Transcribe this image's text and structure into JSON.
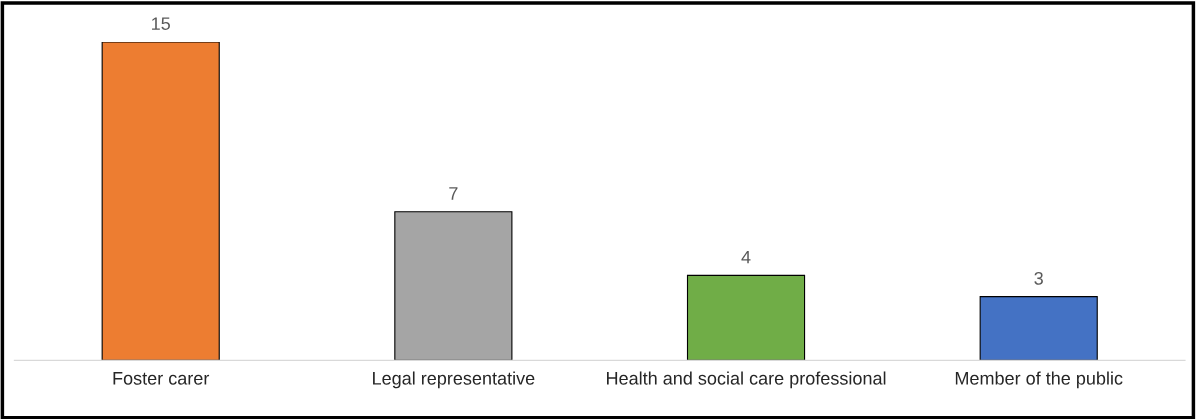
{
  "chart_data": {
    "type": "bar",
    "categories": [
      "Foster carer",
      "Legal representative",
      "Health and social care professional",
      "Member of the public"
    ],
    "values": [
      15,
      7,
      4,
      3
    ],
    "colors": [
      "#ed7d31",
      "#a5a5a5",
      "#70ad47",
      "#4472c4"
    ],
    "data_labels": true,
    "grid": false,
    "legend": false
  }
}
